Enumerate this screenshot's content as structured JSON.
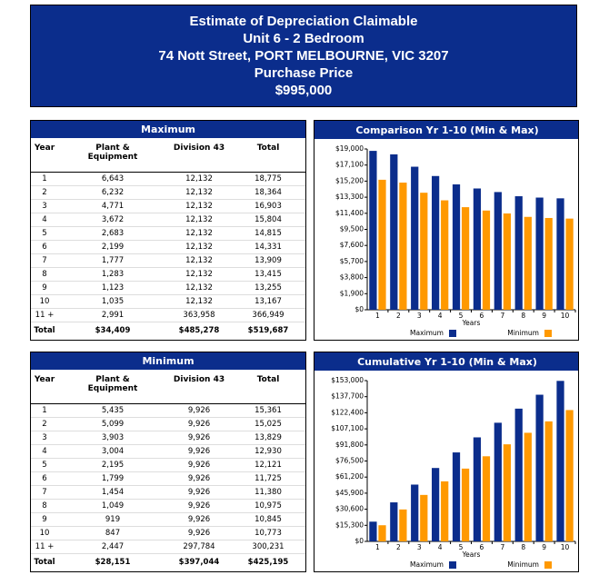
{
  "header": {
    "lines": [
      "Estimate of Depreciation Claimable",
      "Unit 6 - 2 Bedroom",
      "74 Nott Street, PORT MELBOURNE, VIC 3207",
      "Purchase Price",
      "$995,000"
    ]
  },
  "tables": [
    {
      "title": "Maximum",
      "columns": [
        "Year",
        "Plant & Equipment",
        "Division 43",
        "Total"
      ],
      "rows": [
        [
          "1",
          "6,643",
          "12,132",
          "18,775"
        ],
        [
          "2",
          "6,232",
          "12,132",
          "18,364"
        ],
        [
          "3",
          "4,771",
          "12,132",
          "16,903"
        ],
        [
          "4",
          "3,672",
          "12,132",
          "15,804"
        ],
        [
          "5",
          "2,683",
          "12,132",
          "14,815"
        ],
        [
          "6",
          "2,199",
          "12,132",
          "14,331"
        ],
        [
          "7",
          "1,777",
          "12,132",
          "13,909"
        ],
        [
          "8",
          "1,283",
          "12,132",
          "13,415"
        ],
        [
          "9",
          "1,123",
          "12,132",
          "13,255"
        ],
        [
          "10",
          "1,035",
          "12,132",
          "13,167"
        ],
        [
          "11 +",
          "2,991",
          "363,958",
          "366,949"
        ]
      ],
      "total": [
        "Total",
        "$34,409",
        "$485,278",
        "$519,687"
      ]
    },
    {
      "title": "Minimum",
      "columns": [
        "Year",
        "Plant & Equipment",
        "Division 43",
        "Total"
      ],
      "rows": [
        [
          "1",
          "5,435",
          "9,926",
          "15,361"
        ],
        [
          "2",
          "5,099",
          "9,926",
          "15,025"
        ],
        [
          "3",
          "3,903",
          "9,926",
          "13,829"
        ],
        [
          "4",
          "3,004",
          "9,926",
          "12,930"
        ],
        [
          "5",
          "2,195",
          "9,926",
          "12,121"
        ],
        [
          "6",
          "1,799",
          "9,926",
          "11,725"
        ],
        [
          "7",
          "1,454",
          "9,926",
          "11,380"
        ],
        [
          "8",
          "1,049",
          "9,926",
          "10,975"
        ],
        [
          "9",
          "919",
          "9,926",
          "10,845"
        ],
        [
          "10",
          "847",
          "9,926",
          "10,773"
        ],
        [
          "11 +",
          "2,447",
          "297,784",
          "300,231"
        ]
      ],
      "total": [
        "Total",
        "$28,151",
        "$397,044",
        "$425,195"
      ]
    }
  ],
  "charts": [
    {
      "type": "bar",
      "title": "Comparison Yr 1-10 (Min & Max)",
      "xlabel": "Years",
      "categories": [
        "1",
        "2",
        "3",
        "4",
        "5",
        "6",
        "7",
        "8",
        "9",
        "10"
      ],
      "series": [
        {
          "name": "Maximum",
          "color": "#0b2d8c",
          "values": [
            18775,
            18364,
            16903,
            15804,
            14815,
            14331,
            13909,
            13415,
            13255,
            13167
          ]
        },
        {
          "name": "Minimum",
          "color": "#ff9900",
          "values": [
            15361,
            15025,
            13829,
            12930,
            12121,
            11725,
            11380,
            10975,
            10845,
            10773
          ]
        }
      ],
      "ylim": [
        0,
        19000
      ],
      "yticks": [
        {
          "value": 0,
          "label": "$0"
        },
        {
          "value": 1900,
          "label": "$1,900"
        },
        {
          "value": 3800,
          "label": "$3,800"
        },
        {
          "value": 5700,
          "label": "$5,700"
        },
        {
          "value": 7600,
          "label": "$7,600"
        },
        {
          "value": 9500,
          "label": "$9,500"
        },
        {
          "value": 11400,
          "label": "$11,400"
        },
        {
          "value": 13300,
          "label": "$13,300"
        },
        {
          "value": 15200,
          "label": "$15,200"
        },
        {
          "value": 17100,
          "label": "$17,100"
        },
        {
          "value": 19000,
          "label": "$19,000"
        }
      ]
    },
    {
      "type": "bar",
      "title": "Cumulative Yr 1-10 (Min & Max)",
      "xlabel": "Years",
      "categories": [
        "1",
        "2",
        "3",
        "4",
        "5",
        "6",
        "7",
        "8",
        "9",
        "10"
      ],
      "series": [
        {
          "name": "Maximum",
          "color": "#0b2d8c",
          "values": [
            18775,
            37139,
            54042,
            69846,
            84661,
            98992,
            112901,
            126316,
            139571,
            152738
          ]
        },
        {
          "name": "Minimum",
          "color": "#ff9900",
          "values": [
            15361,
            30386,
            44215,
            57145,
            69266,
            80991,
            92371,
            103346,
            114191,
            124964
          ]
        }
      ],
      "ylim": [
        0,
        153000
      ],
      "yticks": [
        {
          "value": 0,
          "label": "$0"
        },
        {
          "value": 15300,
          "label": "$15,300"
        },
        {
          "value": 30600,
          "label": "$30,600"
        },
        {
          "value": 45900,
          "label": "$45,900"
        },
        {
          "value": 61200,
          "label": "$61,200"
        },
        {
          "value": 76500,
          "label": "$76,500"
        },
        {
          "value": 91800,
          "label": "$91,800"
        },
        {
          "value": 107100,
          "label": "$107,100"
        },
        {
          "value": 122400,
          "label": "$122,400"
        },
        {
          "value": 137700,
          "label": "$137,700"
        },
        {
          "value": 153000,
          "label": "$153,000"
        }
      ]
    }
  ]
}
